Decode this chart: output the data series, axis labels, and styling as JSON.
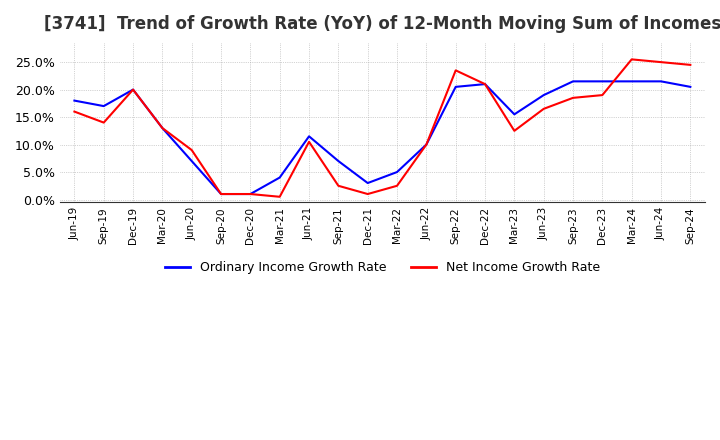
{
  "title": "[3741]  Trend of Growth Rate (YoY) of 12-Month Moving Sum of Incomes",
  "title_fontsize": 12,
  "ylim": [
    -0.005,
    0.285
  ],
  "ytick_values": [
    0.0,
    0.05,
    0.1,
    0.15,
    0.2,
    0.25
  ],
  "background_color": "#ffffff",
  "grid_color": "#aaaaaa",
  "legend_labels": [
    "Ordinary Income Growth Rate",
    "Net Income Growth Rate"
  ],
  "line_colors": [
    "#0000ff",
    "#ff0000"
  ],
  "dates": [
    "Jun-19",
    "Sep-19",
    "Dec-19",
    "Mar-20",
    "Jun-20",
    "Sep-20",
    "Dec-20",
    "Mar-21",
    "Jun-21",
    "Sep-21",
    "Dec-21",
    "Mar-22",
    "Jun-22",
    "Sep-22",
    "Dec-22",
    "Mar-23",
    "Jun-23",
    "Sep-23",
    "Dec-23",
    "Mar-24",
    "Jun-24",
    "Sep-24"
  ],
  "ordinary_income_growth": [
    0.18,
    0.17,
    0.2,
    0.13,
    0.07,
    0.01,
    0.01,
    0.04,
    0.115,
    0.07,
    0.03,
    0.05,
    0.1,
    0.205,
    0.21,
    0.155,
    0.19,
    0.215,
    0.215,
    0.215,
    0.215,
    0.205
  ],
  "net_income_growth": [
    0.16,
    0.14,
    0.2,
    0.13,
    0.09,
    0.01,
    0.01,
    0.005,
    0.105,
    0.025,
    0.01,
    0.025,
    0.1,
    0.235,
    0.21,
    0.125,
    0.165,
    0.185,
    0.19,
    0.255,
    0.25,
    0.245
  ]
}
